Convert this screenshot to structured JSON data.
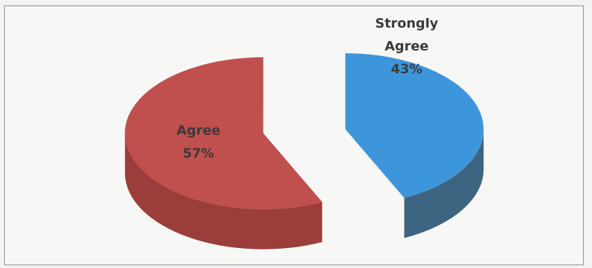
{
  "chart_data": {
    "type": "pie",
    "style": "3d-exploded",
    "legend": "none",
    "slices": [
      {
        "label_lines": [
          "Strongly",
          "Agree"
        ],
        "percent_label": "43%",
        "value": 43,
        "color": "#3d96db",
        "side_color": "#3d6480"
      },
      {
        "label_lines": [
          "Agree"
        ],
        "percent_label": "57%",
        "value": 57,
        "color": "#c0504d",
        "side_color": "#9b3e3b"
      }
    ]
  }
}
